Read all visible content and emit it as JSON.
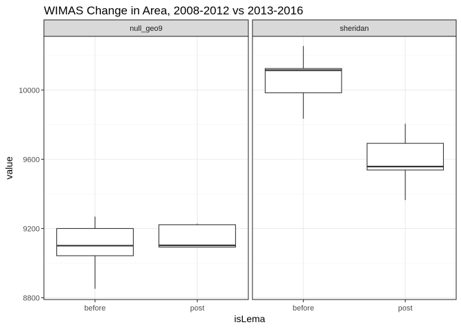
{
  "chart_data": {
    "type": "boxplot",
    "title": "WIMAS Change in Area, 2008-2012 vs 2013-2016",
    "xlabel": "isLema",
    "ylabel": "value",
    "ylim": [
      8790,
      10310
    ],
    "y_ticks": [
      "8800",
      "9200",
      "9600",
      "10000"
    ],
    "y_tick_values": [
      8800,
      9200,
      9600,
      10000
    ],
    "categories": [
      "before",
      "post"
    ],
    "grid": true,
    "facets": [
      {
        "name": "null_geo9",
        "boxes": [
          {
            "category": "before",
            "min": 8852,
            "q1": 9043,
            "median": 9101,
            "q3": 9200,
            "max": 9269
          },
          {
            "category": "post",
            "min": 9093,
            "q1": 9093,
            "median": 9103,
            "q3": 9222,
            "max": 9228
          }
        ]
      },
      {
        "name": "sheridan",
        "boxes": [
          {
            "category": "before",
            "min": 9834,
            "q1": 9984,
            "median": 10114,
            "q3": 10124,
            "max": 10254
          },
          {
            "category": "post",
            "min": 9364,
            "q1": 9538,
            "median": 9558,
            "q3": 9692,
            "max": 9805
          }
        ]
      }
    ]
  },
  "colors": {
    "panel_border": "#333333",
    "strip_fill": "#d9d9d9",
    "grid_major": "#ebebeb",
    "grid_minor": "#f5f5f5",
    "box_line": "#333333",
    "tick_text": "#4d4d4d"
  }
}
